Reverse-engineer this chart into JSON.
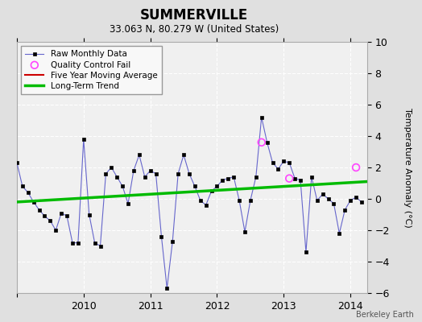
{
  "title": "SUMMERVILLE",
  "subtitle": "33.063 N, 80.279 W (United States)",
  "ylabel": "Temperature Anomaly (°C)",
  "credit": "Berkeley Earth",
  "ylim": [
    -6,
    10
  ],
  "yticks": [
    -6,
    -4,
    -2,
    0,
    2,
    4,
    6,
    8,
    10
  ],
  "xlim_start": 2009.0,
  "xlim_end": 2014.25,
  "fig_bg_color": "#e0e0e0",
  "plot_bg_color": "#f0f0f0",
  "raw_data": {
    "x": [
      2009.0,
      2009.0833,
      2009.1667,
      2009.25,
      2009.3333,
      2009.4167,
      2009.5,
      2009.5833,
      2009.6667,
      2009.75,
      2009.8333,
      2009.9167,
      2010.0,
      2010.0833,
      2010.1667,
      2010.25,
      2010.3333,
      2010.4167,
      2010.5,
      2010.5833,
      2010.6667,
      2010.75,
      2010.8333,
      2010.9167,
      2011.0,
      2011.0833,
      2011.1667,
      2011.25,
      2011.3333,
      2011.4167,
      2011.5,
      2011.5833,
      2011.6667,
      2011.75,
      2011.8333,
      2011.9167,
      2012.0,
      2012.0833,
      2012.1667,
      2012.25,
      2012.3333,
      2012.4167,
      2012.5,
      2012.5833,
      2012.6667,
      2012.75,
      2012.8333,
      2012.9167,
      2013.0,
      2013.0833,
      2013.1667,
      2013.25,
      2013.3333,
      2013.4167,
      2013.5,
      2013.5833,
      2013.6667,
      2013.75,
      2013.8333,
      2013.9167,
      2014.0,
      2014.0833,
      2014.1667
    ],
    "y": [
      2.3,
      0.8,
      0.4,
      -0.2,
      -0.7,
      -1.1,
      -1.4,
      -2.0,
      -0.9,
      -1.1,
      -2.8,
      -2.8,
      3.8,
      -1.0,
      -2.8,
      -3.0,
      1.6,
      2.0,
      1.4,
      0.8,
      -0.3,
      1.8,
      2.8,
      1.4,
      1.8,
      1.6,
      -2.4,
      -5.7,
      -2.7,
      1.6,
      2.8,
      1.6,
      0.8,
      -0.1,
      -0.4,
      0.5,
      0.8,
      1.2,
      1.3,
      1.4,
      -0.1,
      -2.1,
      -0.1,
      1.4,
      5.2,
      3.6,
      2.3,
      1.9,
      2.4,
      2.3,
      1.3,
      1.2,
      -3.4,
      1.4,
      -0.1,
      0.3,
      0.0,
      -0.3,
      -2.2,
      -0.7,
      -0.1,
      0.1,
      -0.2
    ]
  },
  "qc_fail": {
    "x": [
      2012.6667,
      2013.0833,
      2014.0833
    ],
    "y": [
      3.6,
      1.3,
      2.0
    ]
  },
  "trend_line": {
    "x": [
      2009.0,
      2014.25
    ],
    "y": [
      -0.2,
      1.1
    ]
  },
  "raw_line_color": "#6666cc",
  "raw_marker_color": "#000000",
  "qc_marker_color": "#ff44ff",
  "trend_color": "#00bb00",
  "moving_avg_color": "#cc0000",
  "legend_loc": "upper left"
}
